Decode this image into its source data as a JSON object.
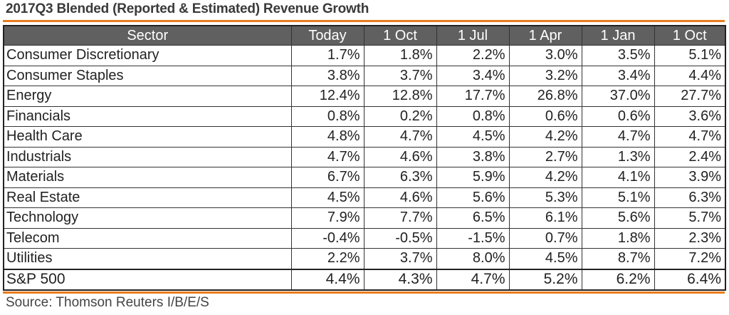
{
  "title": "2017Q3 Blended (Reported & Estimated) Revenue Growth",
  "source": "Source: Thomson Reuters I/B/E/S",
  "colors": {
    "accent": "#e97d1f",
    "header_bg": "#606060"
  },
  "chart_data": {
    "type": "table",
    "title": "2017Q3 Blended (Reported & Estimated) Revenue Growth",
    "columns": [
      "Sector",
      "Today",
      "1 Oct",
      "1 Jul",
      "1 Apr",
      "1 Jan",
      "1 Oct"
    ],
    "rows": [
      {
        "sector": "Consumer Discretionary",
        "values": [
          "1.7%",
          "1.8%",
          "2.2%",
          "3.0%",
          "3.5%",
          "5.1%"
        ]
      },
      {
        "sector": "Consumer Staples",
        "values": [
          "3.8%",
          "3.7%",
          "3.4%",
          "3.2%",
          "3.4%",
          "4.4%"
        ]
      },
      {
        "sector": "Energy",
        "values": [
          "12.4%",
          "12.8%",
          "17.7%",
          "26.8%",
          "37.0%",
          "27.7%"
        ]
      },
      {
        "sector": "Financials",
        "values": [
          "0.8%",
          "0.2%",
          "0.8%",
          "0.6%",
          "0.6%",
          "3.6%"
        ]
      },
      {
        "sector": "Health Care",
        "values": [
          "4.8%",
          "4.7%",
          "4.5%",
          "4.2%",
          "4.7%",
          "4.7%"
        ]
      },
      {
        "sector": "Industrials",
        "values": [
          "4.7%",
          "4.6%",
          "3.8%",
          "2.7%",
          "1.3%",
          "2.4%"
        ]
      },
      {
        "sector": "Materials",
        "values": [
          "6.7%",
          "6.3%",
          "5.9%",
          "4.2%",
          "4.1%",
          "3.9%"
        ]
      },
      {
        "sector": "Real Estate",
        "values": [
          "4.5%",
          "4.6%",
          "5.6%",
          "5.3%",
          "5.1%",
          "6.3%"
        ]
      },
      {
        "sector": "Technology",
        "values": [
          "7.9%",
          "7.7%",
          "6.5%",
          "6.1%",
          "5.6%",
          "5.7%"
        ]
      },
      {
        "sector": "Telecom",
        "values": [
          "-0.4%",
          "-0.5%",
          "-1.5%",
          "0.7%",
          "1.8%",
          "2.3%"
        ]
      },
      {
        "sector": "Utilities",
        "values": [
          "2.2%",
          "3.7%",
          "8.0%",
          "4.5%",
          "8.7%",
          "7.2%"
        ]
      },
      {
        "sector": "S&P 500",
        "values": [
          "4.4%",
          "4.3%",
          "4.7%",
          "5.2%",
          "6.2%",
          "6.4%"
        ]
      }
    ]
  }
}
